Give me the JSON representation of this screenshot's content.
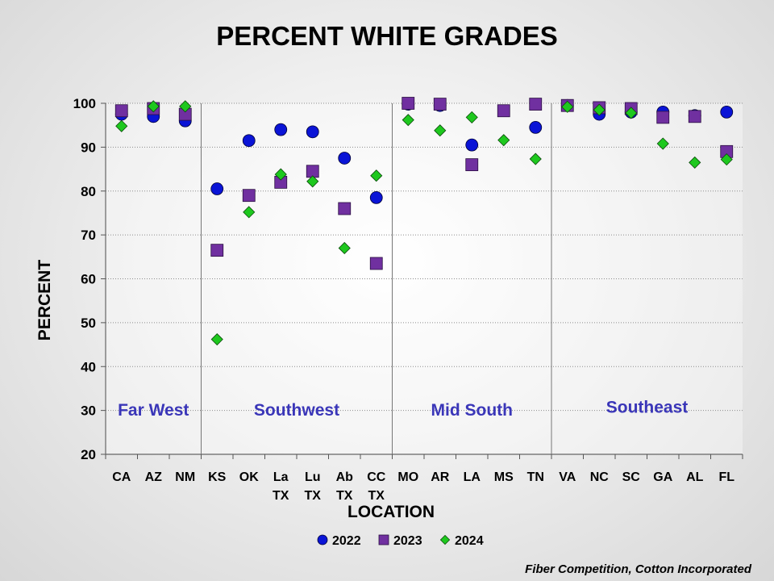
{
  "chart_data": {
    "type": "scatter",
    "title": "PERCENT WHITE GRADES",
    "xlabel": "LOCATION",
    "ylabel": "PERCENT",
    "ylim": [
      20,
      100
    ],
    "yticks": [
      20,
      30,
      40,
      50,
      60,
      70,
      80,
      90,
      100
    ],
    "grid": true,
    "legend_position": "bottom-center",
    "categories": [
      [
        "CA"
      ],
      [
        "AZ"
      ],
      [
        "NM"
      ],
      [
        "KS"
      ],
      [
        "OK"
      ],
      [
        "La",
        "TX"
      ],
      [
        "Lu",
        "TX"
      ],
      [
        "Ab",
        "TX"
      ],
      [
        "CC",
        "TX"
      ],
      [
        "MO"
      ],
      [
        "AR"
      ],
      [
        "LA"
      ],
      [
        "MS"
      ],
      [
        "TN"
      ],
      [
        "VA"
      ],
      [
        "NC"
      ],
      [
        "SC"
      ],
      [
        "GA"
      ],
      [
        "AL"
      ],
      [
        "FL"
      ]
    ],
    "regions": [
      {
        "name": "Far West",
        "start": 0,
        "end": 2
      },
      {
        "name": "Southwest",
        "start": 3,
        "end": 8
      },
      {
        "name": "Mid South",
        "start": 9,
        "end": 13
      },
      {
        "name": "Southeast",
        "start": 14,
        "end": 19
      }
    ],
    "series": [
      {
        "name": "2022",
        "marker": "circle",
        "color": "#0a14d6",
        "values": [
          97.5,
          97,
          96,
          80.5,
          91.5,
          94,
          93.5,
          87.5,
          78.5,
          99.8,
          99.5,
          90.5,
          null,
          94.5,
          99.5,
          97.5,
          98,
          98,
          97.2,
          98
        ]
      },
      {
        "name": "2023",
        "marker": "square",
        "color": "#7030a0",
        "values": [
          98.3,
          98.8,
          97.5,
          66.5,
          79,
          82,
          84.5,
          76,
          63.5,
          100,
          99.8,
          86,
          98.3,
          99.8,
          99.5,
          99,
          98.8,
          96.8,
          97,
          89
        ]
      },
      {
        "name": "2024",
        "marker": "diamond",
        "color": "#1ec81e",
        "values": [
          94.8,
          99.3,
          99.3,
          46.2,
          75.2,
          83.8,
          82.2,
          67,
          83.5,
          96.2,
          93.8,
          96.8,
          91.6,
          87.3,
          99.2,
          98.5,
          97.8,
          90.8,
          86.5,
          87.2
        ]
      }
    ]
  },
  "footer": {
    "credit": "Fiber Competition, Cotton Incorporated"
  }
}
